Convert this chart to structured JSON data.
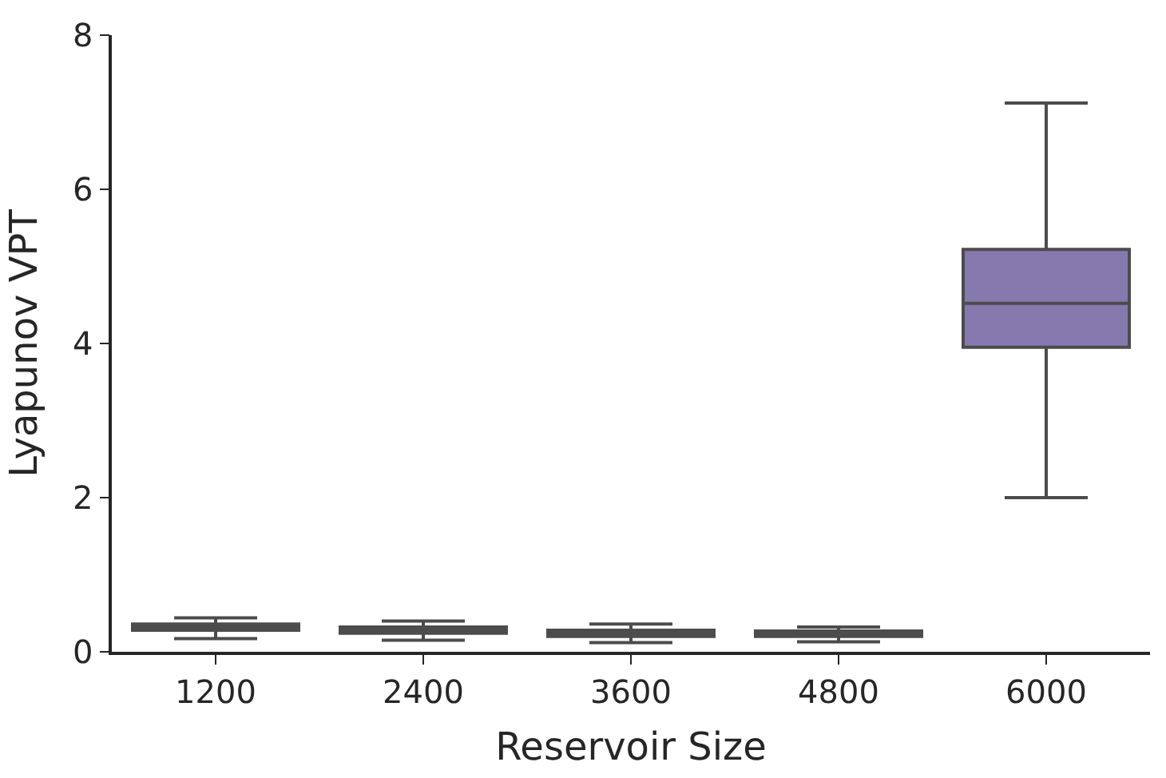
{
  "chart_data": {
    "type": "box",
    "xlabel": "Reservoir Size",
    "ylabel": "Lyapunov VPT",
    "categories": [
      "1200",
      "2400",
      "3600",
      "4800",
      "6000"
    ],
    "boxes": [
      {
        "low": 0.17,
        "q1": 0.28,
        "median": 0.31,
        "q3": 0.36,
        "high": 0.44
      },
      {
        "low": 0.15,
        "q1": 0.24,
        "median": 0.28,
        "q3": 0.32,
        "high": 0.4
      },
      {
        "low": 0.12,
        "q1": 0.2,
        "median": 0.24,
        "q3": 0.28,
        "high": 0.36
      },
      {
        "low": 0.13,
        "q1": 0.2,
        "median": 0.23,
        "q3": 0.27,
        "high": 0.32
      },
      {
        "low": 2.0,
        "q1": 3.95,
        "median": 4.52,
        "q3": 5.22,
        "high": 7.12
      }
    ],
    "colors": [
      "#4c4c4c",
      "#4c4c4c",
      "#4c4c4c",
      "#4c4c4c",
      "#8679ae"
    ],
    "ylim": [
      0,
      8
    ],
    "yticks": [
      0,
      2,
      4,
      6,
      8
    ]
  }
}
